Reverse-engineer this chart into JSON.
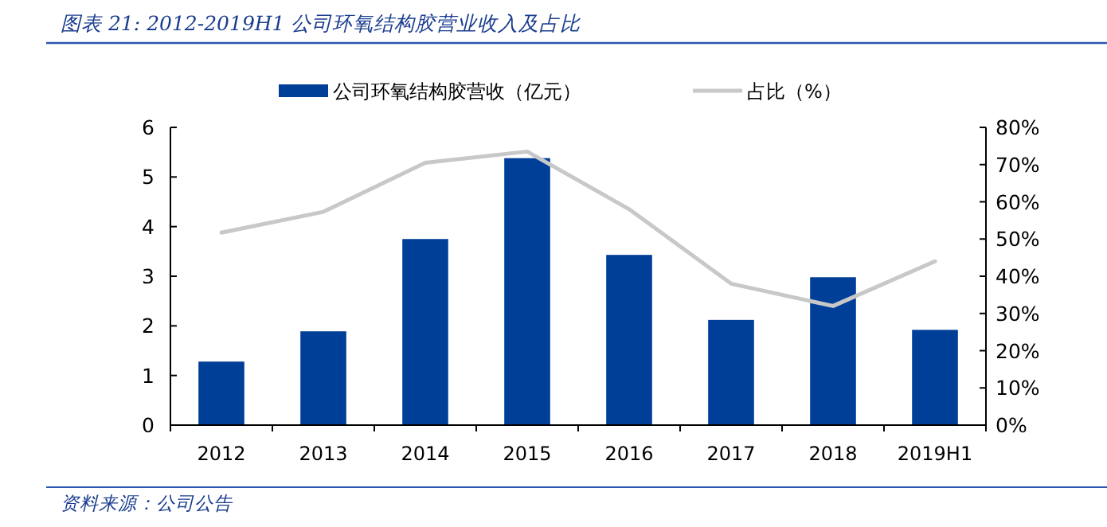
{
  "chart_data": {
    "type": "bar",
    "title": "图表 21:  2012-2019H1 公司环氧结构胶营业收入及占比",
    "categories": [
      "2012",
      "2013",
      "2014",
      "2015",
      "2016",
      "2017",
      "2018",
      "2019H1"
    ],
    "series": [
      {
        "name": "公司环氧结构胶营收（亿元）",
        "color": "#003f98",
        "values": [
          1.28,
          1.89,
          3.75,
          5.38,
          3.43,
          2.12,
          2.98,
          1.92
        ]
      },
      {
        "name": "占比（%）",
        "type": "line",
        "axis": "y2",
        "color": "#c8c8c8",
        "values": [
          51.7,
          57.3,
          70.5,
          73.5,
          58,
          38,
          32,
          44
        ]
      }
    ],
    "ylim": [
      0,
      6
    ],
    "yticks": [
      0,
      1,
      2,
      3,
      4,
      5,
      6
    ],
    "y2lim": [
      0,
      80
    ],
    "y2ticks": [
      {
        "value": 0,
        "label": "0%"
      },
      {
        "value": 10,
        "label": "10%"
      },
      {
        "value": 20,
        "label": "20%"
      },
      {
        "value": 30,
        "label": "30%"
      },
      {
        "value": 40,
        "label": "40%"
      },
      {
        "value": 50,
        "label": "50%"
      },
      {
        "value": 60,
        "label": "60%"
      },
      {
        "value": 70,
        "label": "70%"
      },
      {
        "value": 80,
        "label": "80%"
      }
    ],
    "legend": "top",
    "grid": false,
    "annotations": [
      "资料来源：公司公告"
    ]
  }
}
